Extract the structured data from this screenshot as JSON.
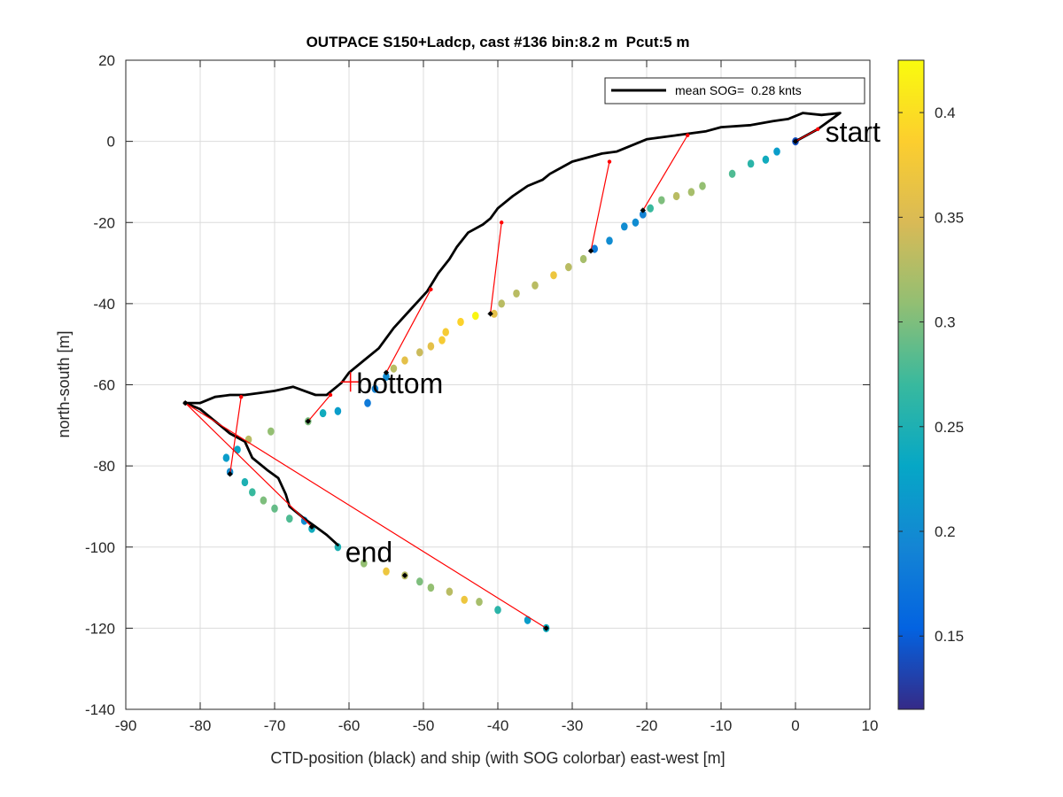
{
  "chart_data": {
    "type": "scatter",
    "title": "OUTPACE S150+Ladcp, cast #136 bin:8.2 m  Pcut:5 m",
    "xlabel": "CTD-position (black) and ship (with SOG colorbar) east-west [m]",
    "ylabel": "north-south [m]",
    "xlim": [
      -90,
      10
    ],
    "ylim": [
      -140,
      20
    ],
    "xticks": [
      -90,
      -80,
      -70,
      -60,
      -50,
      -40,
      -30,
      -20,
      -10,
      0,
      10
    ],
    "yticks": [
      -140,
      -120,
      -100,
      -80,
      -60,
      -40,
      -20,
      0,
      20
    ],
    "grid": true,
    "legend": {
      "position": "top-right",
      "label": "mean SOG=  0.28 knts"
    },
    "colorbar": {
      "range": [
        0.115,
        0.425
      ],
      "ticks": [
        0.15,
        0.2,
        0.25,
        0.3,
        0.35,
        0.4
      ],
      "colormap": [
        "#352a87",
        "#0363e1",
        "#1485d4",
        "#06a7c6",
        "#38b99e",
        "#92bf73",
        "#d9ba56",
        "#fcce2e",
        "#f9fb0e"
      ]
    },
    "annotations": [
      {
        "text": "start",
        "x": 4,
        "y": 2.5
      },
      {
        "text": "bottom",
        "x": -59,
        "y": -59.5
      },
      {
        "text": "end",
        "x": -60.5,
        "y": -101
      }
    ],
    "bottom_marker": {
      "x": -59.8,
      "y": -59.3
    },
    "ctd_track": [
      [
        0,
        0
      ],
      [
        3,
        3
      ],
      [
        6,
        7
      ],
      [
        3.5,
        6.5
      ],
      [
        1,
        7
      ],
      [
        -1,
        5.5
      ],
      [
        -3,
        5
      ],
      [
        -6,
        4
      ],
      [
        -10,
        3.5
      ],
      [
        -12,
        2.5
      ],
      [
        -14,
        2
      ],
      [
        -16,
        1.5
      ],
      [
        -18,
        1
      ],
      [
        -20,
        0.5
      ],
      [
        -22,
        -1
      ],
      [
        -24,
        -2.5
      ],
      [
        -26,
        -3
      ],
      [
        -28,
        -4
      ],
      [
        -30,
        -5
      ],
      [
        -31,
        -6
      ],
      [
        -33,
        -8
      ],
      [
        -34,
        -9.5
      ],
      [
        -36,
        -11
      ],
      [
        -38,
        -13.5
      ],
      [
        -40,
        -16.5
      ],
      [
        -41,
        -19
      ],
      [
        -42,
        -20.5
      ],
      [
        -44,
        -22.5
      ],
      [
        -45.5,
        -26
      ],
      [
        -46.5,
        -29
      ],
      [
        -48,
        -32.5
      ],
      [
        -49.5,
        -37
      ],
      [
        -52,
        -42
      ],
      [
        -54,
        -46
      ],
      [
        -56,
        -51
      ],
      [
        -58,
        -54
      ],
      [
        -60,
        -57
      ],
      [
        -61,
        -59.5
      ],
      [
        -62,
        -61
      ],
      [
        -63,
        -62.5
      ],
      [
        -64.5,
        -62.5
      ],
      [
        -66,
        -61.5
      ],
      [
        -67.5,
        -60.5
      ],
      [
        -70,
        -61.5
      ],
      [
        -72,
        -62
      ],
      [
        -74,
        -62.5
      ],
      [
        -76,
        -62.5
      ],
      [
        -78,
        -63
      ],
      [
        -80,
        -64.5
      ],
      [
        -82,
        -64.5
      ],
      [
        -80,
        -66
      ],
      [
        -78,
        -69
      ],
      [
        -76,
        -72
      ],
      [
        -74,
        -74
      ],
      [
        -73,
        -78
      ],
      [
        -71,
        -81
      ],
      [
        -69.5,
        -83
      ],
      [
        -68.5,
        -87
      ],
      [
        -68,
        -90
      ],
      [
        -66,
        -93
      ],
      [
        -64.5,
        -95
      ],
      [
        -63,
        -97
      ],
      [
        -61.5,
        -99.5
      ]
    ],
    "ship_points": [
      [
        0,
        0,
        0.14
      ],
      [
        -2.5,
        -2.5,
        0.22
      ],
      [
        -4,
        -4.5,
        0.24
      ],
      [
        -6,
        -5.5,
        0.26
      ],
      [
        -8.5,
        -8,
        0.28
      ],
      [
        -12.5,
        -11,
        0.31
      ],
      [
        -14,
        -12.5,
        0.32
      ],
      [
        -16,
        -13.5,
        0.33
      ],
      [
        -18,
        -14.5,
        0.3
      ],
      [
        -19.5,
        -16.5,
        0.27
      ],
      [
        -20.5,
        -18,
        0.19
      ],
      [
        -21.5,
        -20,
        0.2
      ],
      [
        -23,
        -21,
        0.2
      ],
      [
        -25,
        -24.5,
        0.2
      ],
      [
        -27,
        -26.5,
        0.18
      ],
      [
        -28.5,
        -29,
        0.32
      ],
      [
        -30.5,
        -31,
        0.33
      ],
      [
        -32.5,
        -33,
        0.37
      ],
      [
        -35,
        -35.5,
        0.33
      ],
      [
        -37.5,
        -37.5,
        0.33
      ],
      [
        -39.5,
        -40,
        0.33
      ],
      [
        -40.5,
        -42.5,
        0.36
      ],
      [
        -43,
        -43,
        0.42
      ],
      [
        -45,
        -44.5,
        0.39
      ],
      [
        -47,
        -47,
        0.38
      ],
      [
        -47.5,
        -49,
        0.38
      ],
      [
        -49,
        -50.5,
        0.36
      ],
      [
        -50.5,
        -52,
        0.34
      ],
      [
        -52.5,
        -54,
        0.36
      ],
      [
        -54,
        -56,
        0.33
      ],
      [
        -55,
        -58,
        0.2
      ],
      [
        -56.5,
        -61,
        0.19
      ],
      [
        -57.5,
        -64.5,
        0.18
      ],
      [
        -61.5,
        -66.5,
        0.22
      ],
      [
        -63.5,
        -67,
        0.24
      ],
      [
        -65.5,
        -69,
        0.3
      ],
      [
        -70.5,
        -71.5,
        0.31
      ],
      [
        -73.5,
        -73.5,
        0.33
      ],
      [
        -75,
        -76,
        0.23
      ],
      [
        -76.5,
        -78,
        0.22
      ],
      [
        -76,
        -81.5,
        0.2
      ],
      [
        -74,
        -84,
        0.25
      ],
      [
        -73,
        -86.5,
        0.27
      ],
      [
        -71.5,
        -88.5,
        0.3
      ],
      [
        -70,
        -90.5,
        0.29
      ],
      [
        -68,
        -93,
        0.28
      ],
      [
        -66,
        -93.5,
        0.2
      ],
      [
        -65,
        -95.5,
        0.24
      ],
      [
        -61.5,
        -100,
        0.25
      ],
      [
        -58,
        -104,
        0.31
      ],
      [
        -55,
        -106,
        0.37
      ],
      [
        -52.5,
        -107,
        0.33
      ],
      [
        -50.5,
        -108.5,
        0.3
      ],
      [
        -49,
        -110,
        0.31
      ],
      [
        -46.5,
        -111,
        0.33
      ],
      [
        -44.5,
        -113,
        0.37
      ],
      [
        -42.5,
        -113.5,
        0.32
      ],
      [
        -40,
        -115.5,
        0.26
      ],
      [
        -36,
        -118,
        0.22
      ],
      [
        -33.5,
        -120,
        0.24
      ]
    ],
    "link_lines": [
      [
        [
          3,
          3
        ],
        [
          0,
          0
        ]
      ],
      [
        [
          -14.5,
          1.5
        ],
        [
          -20.5,
          -17
        ]
      ],
      [
        [
          -25,
          -5
        ],
        [
          -27.5,
          -27
        ]
      ],
      [
        [
          -39.5,
          -20
        ],
        [
          -41,
          -42.5
        ]
      ],
      [
        [
          -49,
          -36.5
        ],
        [
          -55,
          -57
        ]
      ],
      [
        [
          -62.5,
          -62.5
        ],
        [
          -65.5,
          -69
        ]
      ],
      [
        [
          -74.5,
          -63
        ],
        [
          -76,
          -82
        ]
      ],
      [
        [
          -82,
          -64.5
        ],
        [
          -65,
          -95
        ]
      ],
      [
        [
          -82,
          -64.5
        ],
        [
          -33.5,
          -120
        ]
      ]
    ],
    "black_markers": [
      [
        0,
        0
      ],
      [
        -20.5,
        -17
      ],
      [
        -27.5,
        -27
      ],
      [
        -41,
        -42.5
      ],
      [
        -55,
        -57
      ],
      [
        -65.5,
        -69
      ],
      [
        -76,
        -82
      ],
      [
        -65,
        -95
      ],
      [
        -52.5,
        -107
      ],
      [
        -33.5,
        -120
      ],
      [
        -82,
        -64.5
      ]
    ]
  }
}
